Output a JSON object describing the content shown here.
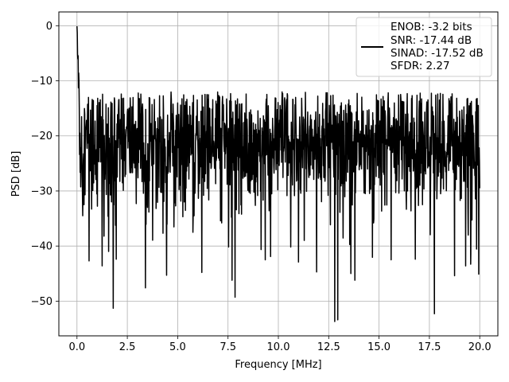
{
  "chart_data": {
    "type": "line",
    "title": "",
    "xlabel": "Frequency [MHz]",
    "ylabel": "PSD [dB]",
    "xlim": [
      -0.9,
      20.9
    ],
    "ylim": [
      -56.3,
      2.5
    ],
    "xticks": [
      0.0,
      2.5,
      5.0,
      7.5,
      10.0,
      12.5,
      15.0,
      17.5,
      20.0
    ],
    "xtick_labels": [
      "0.0",
      "2.5",
      "5.0",
      "7.5",
      "10.0",
      "12.5",
      "15.0",
      "17.5",
      "20.0"
    ],
    "yticks": [
      0,
      -10,
      -20,
      -30,
      -40,
      -50
    ],
    "ytick_labels": [
      "0",
      "−10",
      "−20",
      "−30",
      "−40",
      "−50"
    ],
    "grid": true,
    "legend_position": "top-right",
    "series": [
      {
        "color": "#000000",
        "x_range": [
          0,
          20
        ],
        "noise_floor_db": -21,
        "noise_band_db": [
          -35,
          -13
        ],
        "peak_near_dc_db": -0.1,
        "notable_points": [
          {
            "x": 0.0,
            "y": -0.1
          },
          {
            "x": 0.2,
            "y": -24
          },
          {
            "x": 0.35,
            "y": -32.5
          },
          {
            "x": 0.6,
            "y": -42.7
          },
          {
            "x": 1.25,
            "y": -43.6
          },
          {
            "x": 1.8,
            "y": -51.3
          },
          {
            "x": 1.95,
            "y": -42.4
          },
          {
            "x": 3.4,
            "y": -47.6
          },
          {
            "x": 4.45,
            "y": -45.3
          },
          {
            "x": 6.2,
            "y": -44.8
          },
          {
            "x": 7.7,
            "y": -46.2
          },
          {
            "x": 7.85,
            "y": -49.3
          },
          {
            "x": 9.35,
            "y": -42.5
          },
          {
            "x": 11.0,
            "y": -42.9
          },
          {
            "x": 11.9,
            "y": -44.7
          },
          {
            "x": 12.8,
            "y": -53.7
          },
          {
            "x": 12.95,
            "y": -53.4
          },
          {
            "x": 13.6,
            "y": -45.0
          },
          {
            "x": 13.8,
            "y": -46.2
          },
          {
            "x": 15.6,
            "y": -42.5
          },
          {
            "x": 16.8,
            "y": -42.4
          },
          {
            "x": 17.75,
            "y": -52.3
          },
          {
            "x": 18.75,
            "y": -45.4
          },
          {
            "x": 19.3,
            "y": -43.6
          },
          {
            "x": 19.55,
            "y": -43.3
          },
          {
            "x": 19.95,
            "y": -45.1
          },
          {
            "x": 20.0,
            "y": -29.5
          }
        ]
      }
    ],
    "legend_entries": [
      "ENOB: -3.2 bits",
      "SNR: -17.44 dB",
      "SINAD: -17.52 dB",
      "SFDR: 2.27"
    ]
  }
}
